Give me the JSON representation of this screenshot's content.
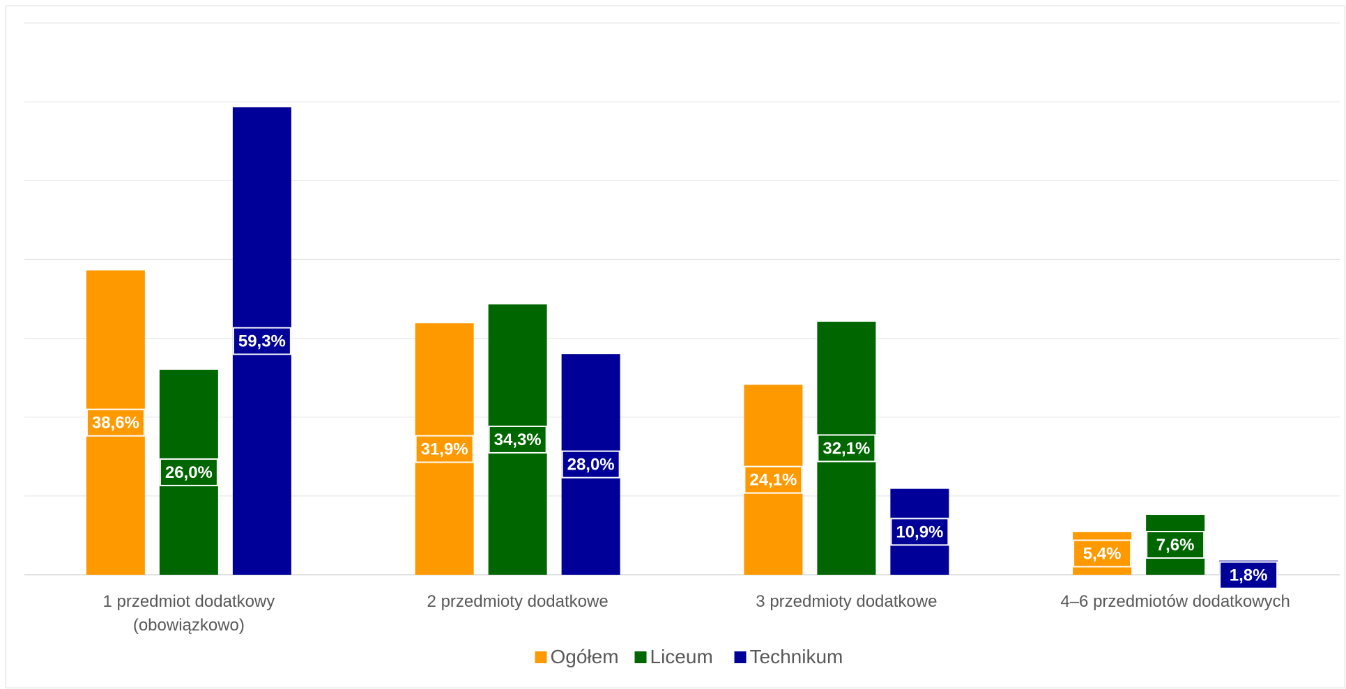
{
  "chart_data": {
    "type": "bar",
    "title": "",
    "xlabel": "",
    "ylabel": "",
    "ylim": [
      0,
      70
    ],
    "grid": true,
    "legend_position": "bottom",
    "categories": [
      [
        "1 przedmiot dodatkowy",
        "(obowiązkowo)"
      ],
      [
        "2 przedmioty dodatkowe"
      ],
      [
        "3 przedmioty dodatkowe"
      ],
      [
        "4–6 przedmiotów dodatkowych"
      ]
    ],
    "series": [
      {
        "name": "Ogółem",
        "color": "#ff9900",
        "values": [
          38.6,
          31.9,
          24.1,
          5.4
        ],
        "labels": [
          "38,6%",
          "31,9%",
          "24,1%",
          "5,4%"
        ]
      },
      {
        "name": "Liceum",
        "color": "#006600",
        "values": [
          26.0,
          34.3,
          32.1,
          7.6
        ],
        "labels": [
          "26,0%",
          "34,3%",
          "32,1%",
          "7,6%"
        ]
      },
      {
        "name": "Technikum",
        "color": "#000099",
        "values": [
          59.3,
          28.0,
          10.9,
          1.8
        ],
        "labels": [
          "59,3%",
          "28,0%",
          "10,9%",
          "1,8%"
        ]
      }
    ]
  }
}
